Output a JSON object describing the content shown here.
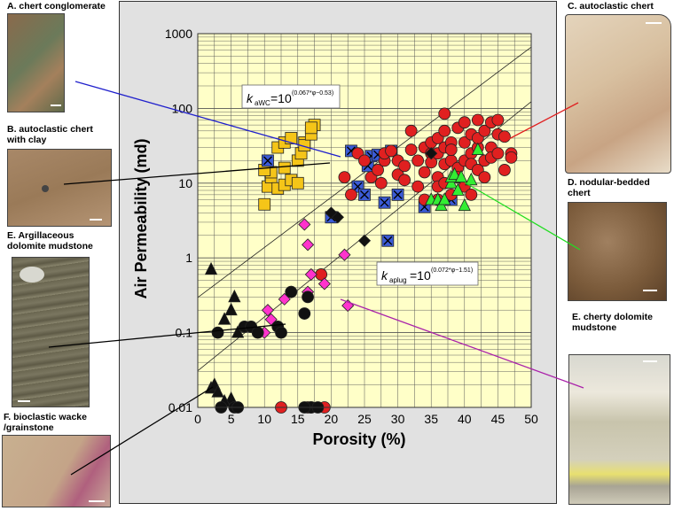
{
  "samples": [
    {
      "key": "A",
      "label": "A. chert conglomerate"
    },
    {
      "key": "B",
      "label": "B. autoclastic chert\nwith clay"
    },
    {
      "key": "Eleft",
      "label": "E. Argillaceous\ndolomite mudstone"
    },
    {
      "key": "F",
      "label": "F. bioclastic wacke\n/grainstone"
    },
    {
      "key": "C",
      "label": "C. autoclastic chert"
    },
    {
      "key": "D",
      "label": "D. nodular-bedded\nchert"
    },
    {
      "key": "Eright",
      "label": "E. cherty dolomite\nmudstone"
    }
  ],
  "photo_colors": {
    "A": "#8a6a4c",
    "B": "#9a7a58",
    "Eleft": "#6a6650",
    "F": "#c4a488",
    "C": "#d8c0a0",
    "D": "#7a5a3a",
    "Eright": "#d0ccb8"
  },
  "equations": {
    "awc": {
      "lhs_k": "k",
      "lhs_sub": "aWC",
      "eq": "=10",
      "exp": "(0.067*φ−0.53)"
    },
    "aplug": {
      "lhs_k": "k",
      "lhs_sub": "aplug",
      "eq": "=10",
      "exp": "(0.072*φ−1.51)"
    }
  },
  "chart_data": {
    "type": "scatter",
    "title": "",
    "xlabel": "Porosity (%)",
    "ylabel": "Air Permeability (md)",
    "xlim": [
      0,
      50
    ],
    "ylim": [
      0.01,
      1000
    ],
    "y_scale": "log",
    "x_ticks": [
      "0",
      "5",
      "10",
      "15",
      "20",
      "25",
      "30",
      "35",
      "40",
      "45",
      "50"
    ],
    "y_ticks": [
      "0.01",
      "0.1",
      "1",
      "10",
      "100",
      "1000"
    ],
    "grid": true,
    "fit_lines": [
      {
        "name": "kaWC",
        "slope": 0.067,
        "intercept": -0.53
      },
      {
        "name": "kaplug",
        "slope": 0.072,
        "intercept": -1.51
      }
    ],
    "series": [
      {
        "marker": "square",
        "color": "#f5c518",
        "points": [
          [
            10,
            5.2
          ],
          [
            10.5,
            9
          ],
          [
            11,
            12
          ],
          [
            12,
            8.5
          ],
          [
            13,
            9.5
          ],
          [
            14,
            11
          ],
          [
            15,
            10
          ],
          [
            11,
            14
          ],
          [
            13,
            16
          ],
          [
            10,
            15
          ],
          [
            12,
            30
          ],
          [
            13,
            35
          ],
          [
            14,
            40
          ],
          [
            15,
            20
          ],
          [
            15.5,
            25
          ],
          [
            16,
            35
          ],
          [
            16,
            32
          ],
          [
            17,
            45
          ],
          [
            17.5,
            60
          ],
          [
            17,
            55
          ]
        ]
      },
      {
        "marker": "square-x",
        "color": "#3b5bd6",
        "points": [
          [
            10.5,
            20
          ],
          [
            20,
            3.5
          ],
          [
            23,
            27
          ],
          [
            24,
            9
          ],
          [
            25,
            7
          ],
          [
            25.5,
            17
          ],
          [
            26,
            23
          ],
          [
            27,
            24
          ],
          [
            28,
            5.5
          ],
          [
            29,
            27
          ],
          [
            30,
            7
          ],
          [
            28.5,
            1.7
          ],
          [
            34,
            4.8
          ],
          [
            38,
            6
          ]
        ]
      },
      {
        "marker": "circle",
        "color": "#e02020",
        "points": [
          [
            12.5,
            0.01
          ],
          [
            16.5,
            0.01
          ],
          [
            17,
            0.01
          ],
          [
            19,
            0.01
          ],
          [
            18.5,
            0.6
          ],
          [
            22,
            12
          ],
          [
            23,
            7
          ],
          [
            24,
            25
          ],
          [
            25,
            20
          ],
          [
            26,
            12
          ],
          [
            27,
            15
          ],
          [
            27.5,
            10
          ],
          [
            28,
            20
          ],
          [
            28,
            25
          ],
          [
            29,
            27
          ],
          [
            30,
            13
          ],
          [
            30,
            20
          ],
          [
            31,
            11
          ],
          [
            31,
            17
          ],
          [
            32,
            50
          ],
          [
            32,
            28
          ],
          [
            33,
            9
          ],
          [
            33,
            20
          ],
          [
            34,
            14
          ],
          [
            34,
            30
          ],
          [
            34,
            6
          ],
          [
            35,
            25
          ],
          [
            35,
            35
          ],
          [
            35,
            19
          ],
          [
            36,
            12
          ],
          [
            36,
            9
          ],
          [
            36,
            40
          ],
          [
            36,
            25
          ],
          [
            36,
            6
          ],
          [
            37,
            18
          ],
          [
            37,
            50
          ],
          [
            37,
            30
          ],
          [
            37,
            10
          ],
          [
            37,
            85
          ],
          [
            38,
            20
          ],
          [
            38,
            35
          ],
          [
            38,
            7
          ],
          [
            38,
            28
          ],
          [
            39,
            55
          ],
          [
            39,
            16
          ],
          [
            39,
            12
          ],
          [
            40,
            65
          ],
          [
            40,
            35
          ],
          [
            40,
            20
          ],
          [
            40,
            9
          ],
          [
            41,
            45
          ],
          [
            41,
            25
          ],
          [
            41,
            18
          ],
          [
            41,
            7
          ],
          [
            42,
            70
          ],
          [
            42,
            30
          ],
          [
            42,
            15
          ],
          [
            42,
            40
          ],
          [
            43,
            20
          ],
          [
            43,
            50
          ],
          [
            43,
            12
          ],
          [
            44,
            65
          ],
          [
            44,
            30
          ],
          [
            44,
            22
          ],
          [
            45,
            70
          ],
          [
            45,
            45
          ],
          [
            45,
            25
          ],
          [
            46,
            42
          ],
          [
            46,
            15
          ],
          [
            47,
            25
          ],
          [
            47,
            22
          ]
        ]
      },
      {
        "marker": "triangle",
        "color": "#33ee33",
        "points": [
          [
            35,
            6
          ],
          [
            36,
            6
          ],
          [
            36.5,
            5
          ],
          [
            37,
            6
          ],
          [
            38,
            10
          ],
          [
            38,
            12
          ],
          [
            38.5,
            13
          ],
          [
            39,
            8
          ],
          [
            39.5,
            12
          ],
          [
            40,
            5
          ],
          [
            41,
            11
          ],
          [
            42,
            28
          ]
        ]
      },
      {
        "marker": "diamond",
        "color": "#ff33cc",
        "points": [
          [
            10,
            0.1
          ],
          [
            10.5,
            0.2
          ],
          [
            11,
            0.15
          ],
          [
            13,
            0.28
          ],
          [
            14,
            0.35
          ],
          [
            16,
            2.8
          ],
          [
            16.5,
            1.5
          ],
          [
            16.5,
            0.35
          ],
          [
            17,
            0.6
          ],
          [
            19,
            0.45
          ],
          [
            22,
            1.1
          ],
          [
            22.5,
            0.23
          ]
        ]
      },
      {
        "marker": "diamond",
        "color": "#111111",
        "points": [
          [
            20,
            4
          ],
          [
            21,
            3.5
          ],
          [
            25,
            1.7
          ],
          [
            35,
            25
          ]
        ]
      },
      {
        "marker": "triangle",
        "color": "#111111",
        "points": [
          [
            2,
            0.7
          ],
          [
            2,
            0.018
          ],
          [
            2.5,
            0.02
          ],
          [
            3,
            0.016
          ],
          [
            4,
            0.15
          ],
          [
            5,
            0.2
          ],
          [
            5.5,
            0.3
          ],
          [
            6,
            0.1
          ],
          [
            5,
            0.013
          ],
          [
            4,
            0.012
          ]
        ]
      },
      {
        "marker": "circle",
        "color": "#111111",
        "points": [
          [
            3,
            0.1
          ],
          [
            3.5,
            0.01
          ],
          [
            5.5,
            0.01
          ],
          [
            6,
            0.01
          ],
          [
            7,
            0.12
          ],
          [
            8,
            0.12
          ],
          [
            9,
            0.1
          ],
          [
            12,
            0.12
          ],
          [
            12.5,
            0.1
          ],
          [
            14,
            0.35
          ],
          [
            16,
            0.18
          ],
          [
            16.5,
            0.3
          ],
          [
            17,
            0.01
          ],
          [
            16,
            0.01
          ],
          [
            18,
            0.01
          ]
        ]
      }
    ]
  }
}
